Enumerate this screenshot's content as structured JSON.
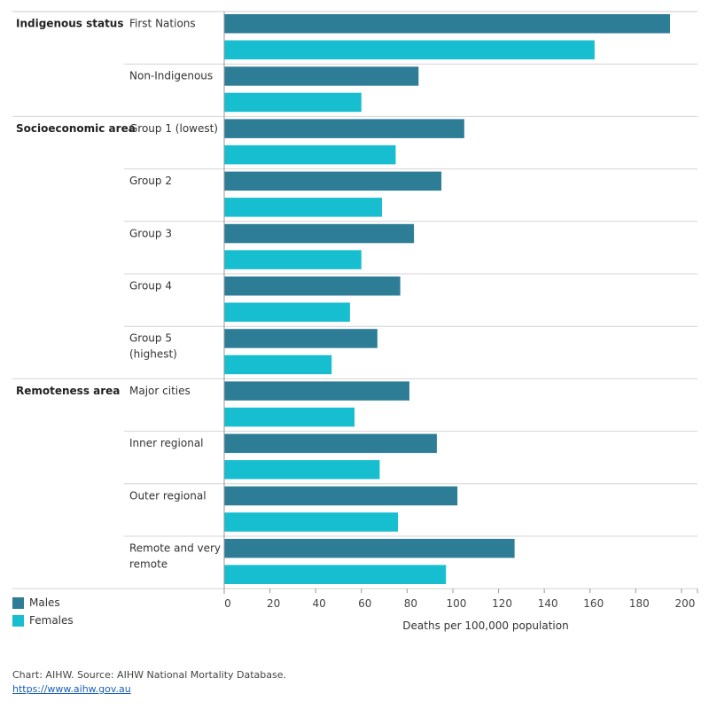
{
  "chart_data": {
    "type": "bar",
    "orientation": "horizontal",
    "xlabel": "Deaths per 100,000 population",
    "xlim": [
      0,
      207
    ],
    "xticks": [
      0,
      20,
      40,
      60,
      80,
      100,
      120,
      140,
      160,
      180,
      200
    ],
    "grid": false,
    "legend_position": "bottom-left",
    "series": [
      {
        "name": "Males",
        "color": "#2e7d97"
      },
      {
        "name": "Females",
        "color": "#17becf"
      }
    ],
    "groups": [
      {
        "label": "Indigenous status",
        "categories": [
          {
            "label": [
              "First Nations"
            ],
            "values": [
              195,
              162
            ]
          },
          {
            "label": [
              "Non-Indigenous"
            ],
            "values": [
              85,
              60
            ]
          }
        ]
      },
      {
        "label": "Socioeconomic area",
        "categories": [
          {
            "label": [
              "Group 1 (lowest)"
            ],
            "values": [
              105,
              75
            ]
          },
          {
            "label": [
              "Group 2"
            ],
            "values": [
              95,
              69
            ]
          },
          {
            "label": [
              "Group 3"
            ],
            "values": [
              83,
              60
            ]
          },
          {
            "label": [
              "Group 4"
            ],
            "values": [
              77,
              55
            ]
          },
          {
            "label": [
              "Group 5",
              "(highest)"
            ],
            "values": [
              67,
              47
            ]
          }
        ]
      },
      {
        "label": "Remoteness area",
        "categories": [
          {
            "label": [
              "Major cities"
            ],
            "values": [
              81,
              57
            ]
          },
          {
            "label": [
              "Inner regional"
            ],
            "values": [
              93,
              68
            ]
          },
          {
            "label": [
              "Outer regional"
            ],
            "values": [
              102,
              76
            ]
          },
          {
            "label": [
              "Remote and very",
              "remote"
            ],
            "values": [
              127,
              97
            ]
          }
        ]
      }
    ]
  },
  "legend": [
    {
      "label": "Males",
      "color": "#2e7d97"
    },
    {
      "label": "Females",
      "color": "#17becf"
    }
  ],
  "footer": {
    "source": "Chart: AIHW. Source: AIHW National Mortality Database.",
    "link": "https://www.aihw.gov.au"
  }
}
